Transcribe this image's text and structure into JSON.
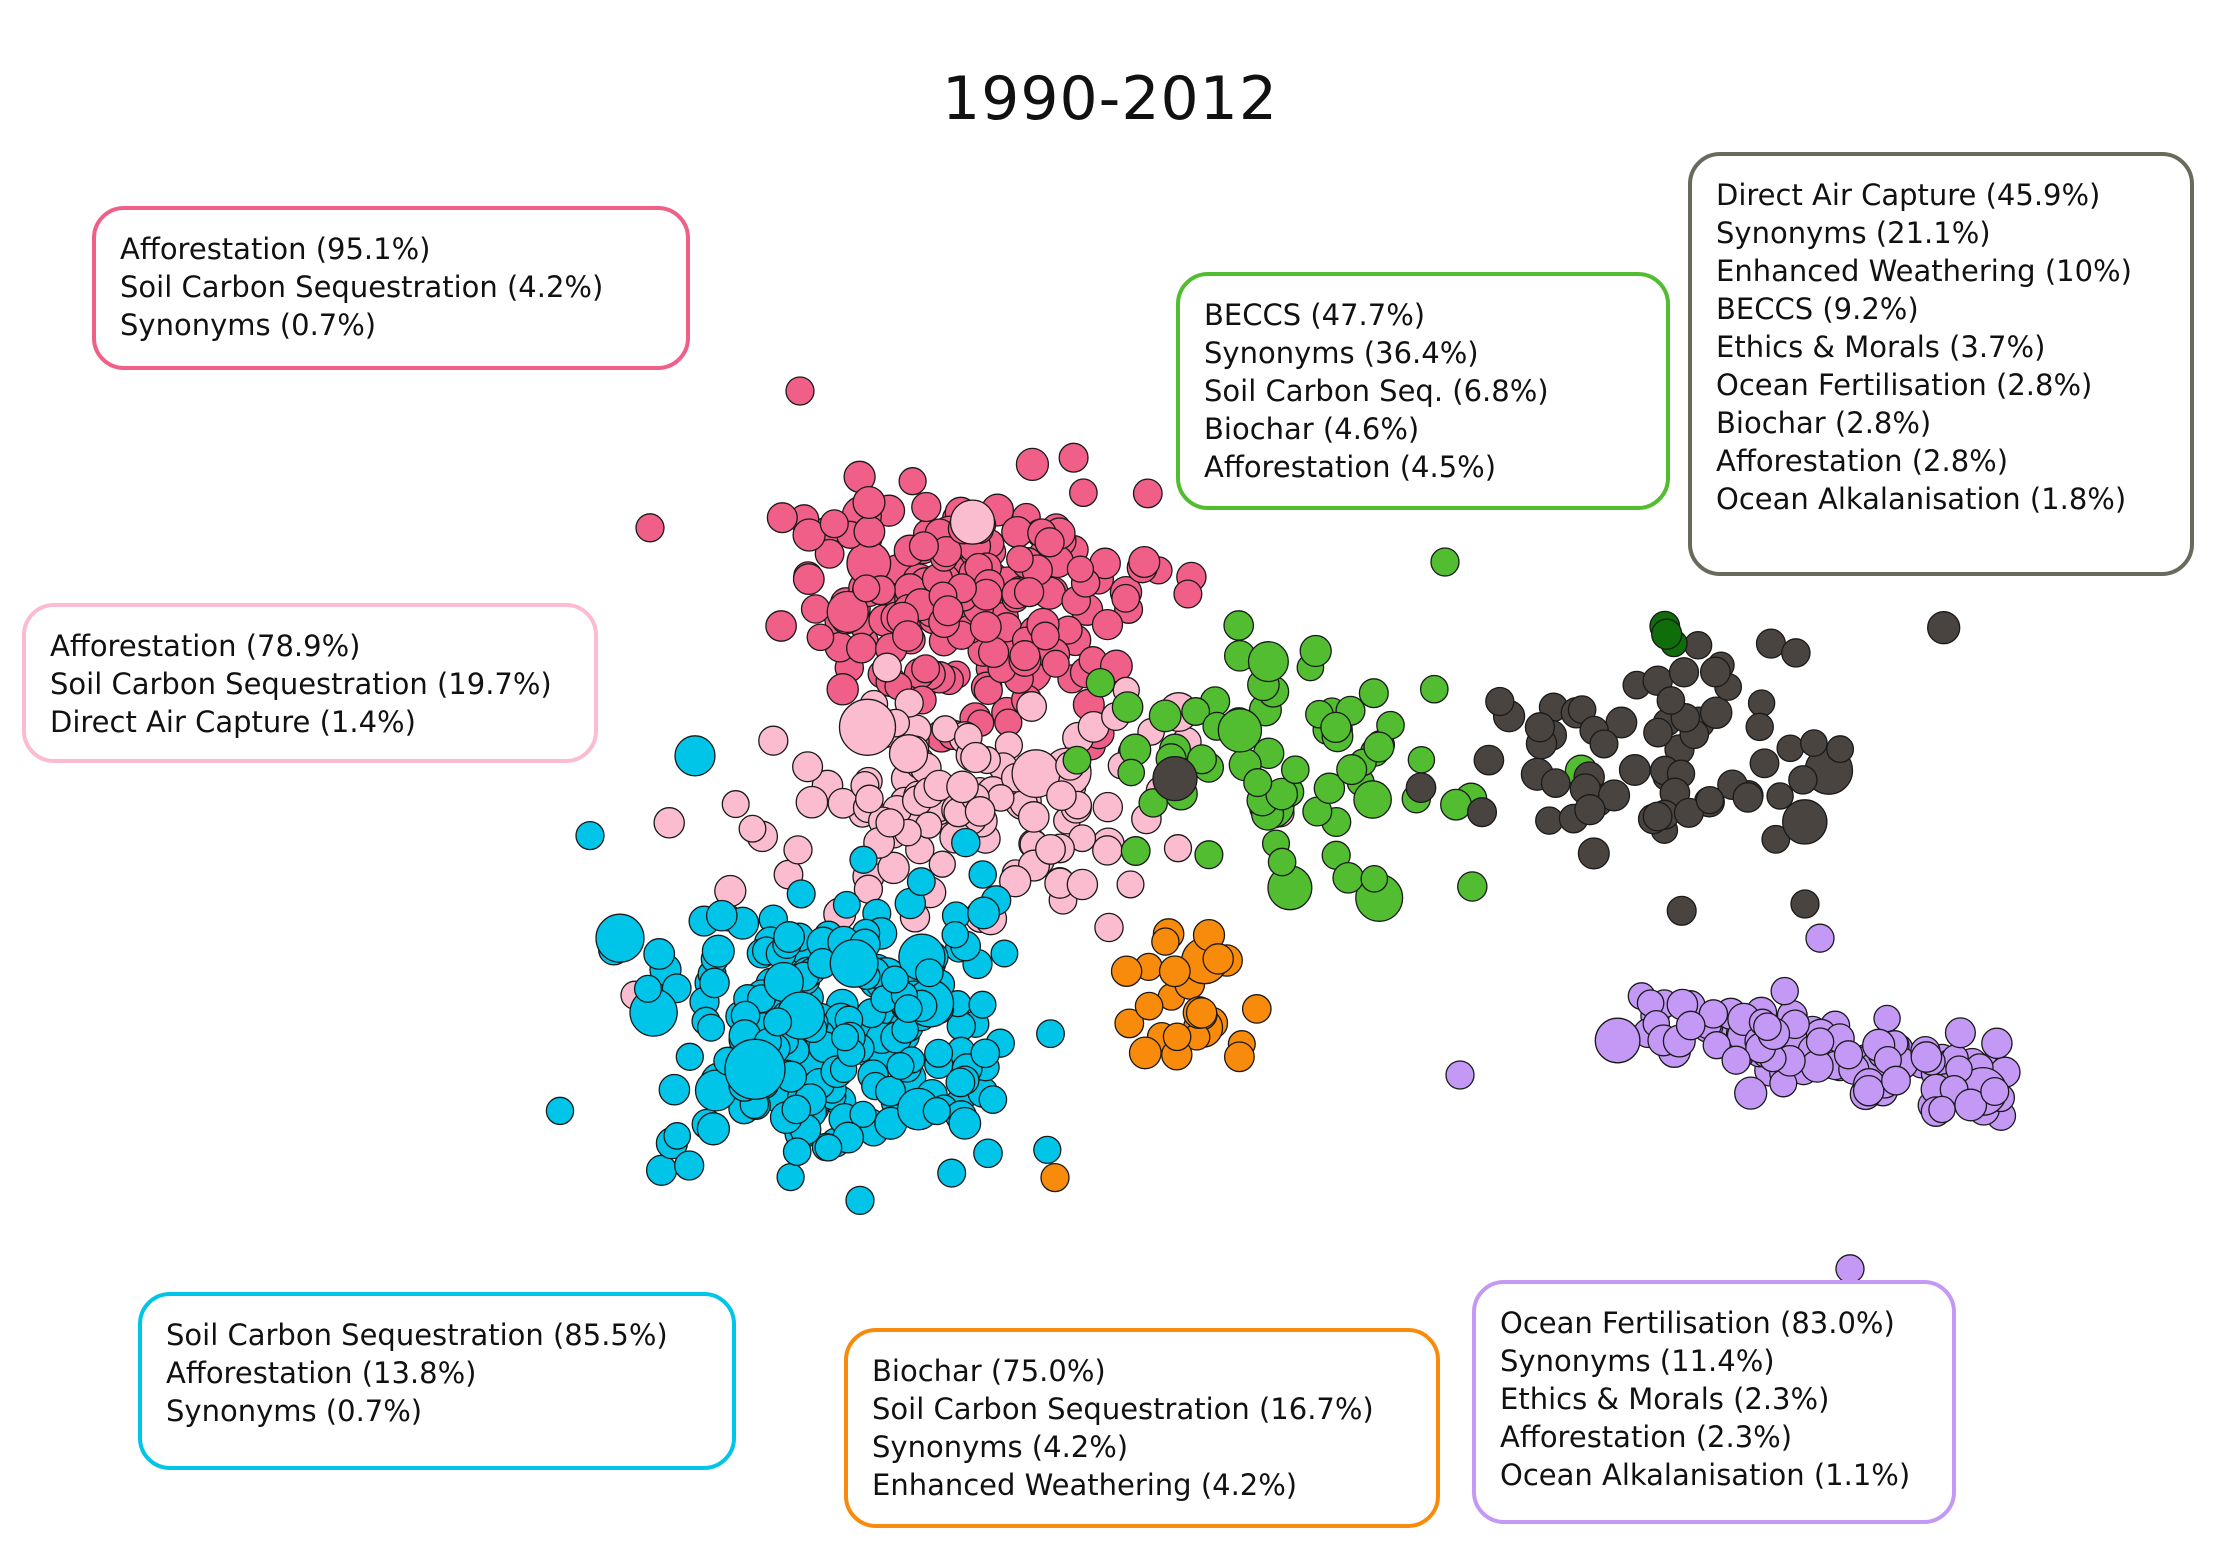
{
  "chart_data": {
    "type": "scatter",
    "title": "1990-2012",
    "xlabel": "",
    "ylabel": "",
    "grid": false,
    "axes_visible": false,
    "clusters": [
      {
        "id": "dark-pink",
        "color": "#ef5f87",
        "labels": [
          "Afforestation (95.1%)",
          "Soil Carbon Sequestration (4.2%)",
          "Synonyms (0.7%)"
        ],
        "centroid": [
          0.28,
          0.34
        ],
        "spread": [
          0.075,
          0.065
        ],
        "n": 210,
        "extra_points": [
          [
            0.16,
            0.15
          ],
          [
            0.06,
            0.27
          ]
        ]
      },
      {
        "id": "light-pink",
        "color": "#fbbcd0",
        "labels": [
          "Afforestation (78.9%)",
          "Soil Carbon Sequestration (19.7%)",
          "Direct Air Capture (1.4%)"
        ],
        "centroid": [
          0.27,
          0.52
        ],
        "spread": [
          0.09,
          0.055
        ],
        "n": 130,
        "extra_points": [
          [
            0.05,
            0.68
          ],
          [
            0.48,
            0.52
          ]
        ]
      },
      {
        "id": "cyan",
        "color": "#00c4e8",
        "labels": [
          "Soil Carbon Sequestration (85.5%)",
          "Afforestation (13.8%)",
          "Synonyms (0.7%)"
        ],
        "centroid": [
          0.17,
          0.71
        ],
        "spread": [
          0.075,
          0.07
        ],
        "n": 240,
        "extra_points": [
          [
            0.02,
            0.54
          ],
          [
            0.2,
            0.86
          ]
        ]
      },
      {
        "id": "orange",
        "color": "#f88b0c",
        "labels": [
          "Biochar (75.0%)",
          "Soil Carbon Sequestration (16.7%)",
          "Synonyms (4.2%)",
          "Enhanced Weathering (4.2%)"
        ],
        "centroid": [
          0.42,
          0.69
        ],
        "spread": [
          0.04,
          0.03
        ],
        "n": 26,
        "extra_points": [
          [
            0.33,
            0.84
          ]
        ]
      },
      {
        "id": "green",
        "color": "#52bd30",
        "labels": [
          "BECCS (47.7%)",
          "Synonyms (36.4%)",
          "Soil Carbon Seq. (6.8%)",
          "Biochar (4.6%)",
          "Afforestation (4.5%)"
        ],
        "centroid": [
          0.48,
          0.48
        ],
        "spread": [
          0.08,
          0.065
        ],
        "n": 70,
        "extra_points": [
          [
            0.59,
            0.3
          ]
        ]
      },
      {
        "id": "dark-gray",
        "color": "#4a4440",
        "labels": [
          "Direct Air Capture (45.9%)",
          "Synonyms (21.1%)",
          "Enhanced Weathering (10%)",
          "BECCS (9.2%)",
          "Ethics & Morals (3.7%)",
          "Ocean Fertilisation (2.8%)",
          "Biochar (2.8%)",
          "Afforestation (2.8%)",
          "Ocean Alkalanisation (1.8%)"
        ],
        "centroid": [
          0.73,
          0.47
        ],
        "spread": [
          0.085,
          0.065
        ],
        "n": 70,
        "extra_points": [
          [
            0.83,
            0.6
          ]
        ]
      },
      {
        "id": "dark-green",
        "color": "#0f6d0a",
        "labels": [],
        "centroid": [
          0.73,
          0.36
        ],
        "spread": [
          0.012,
          0.008
        ],
        "n": 3,
        "extra_points": []
      },
      {
        "id": "purple",
        "color": "#c499f5",
        "labels": [
          "Ocean Fertilisation (83.0%)",
          "Synonyms (11.4%)",
          "Ethics & Morals (2.3%)",
          "Afforestation (2.3%)",
          "Ocean Alkalanisation (1.1%)"
        ],
        "centroid": [
          0.84,
          0.73
        ],
        "spread": [
          0.11,
          0.035
        ],
        "n": 130,
        "extra_points": [
          [
            0.6,
            0.75
          ],
          [
            0.86,
            0.92
          ],
          [
            0.84,
            0.63
          ]
        ]
      }
    ]
  }
}
